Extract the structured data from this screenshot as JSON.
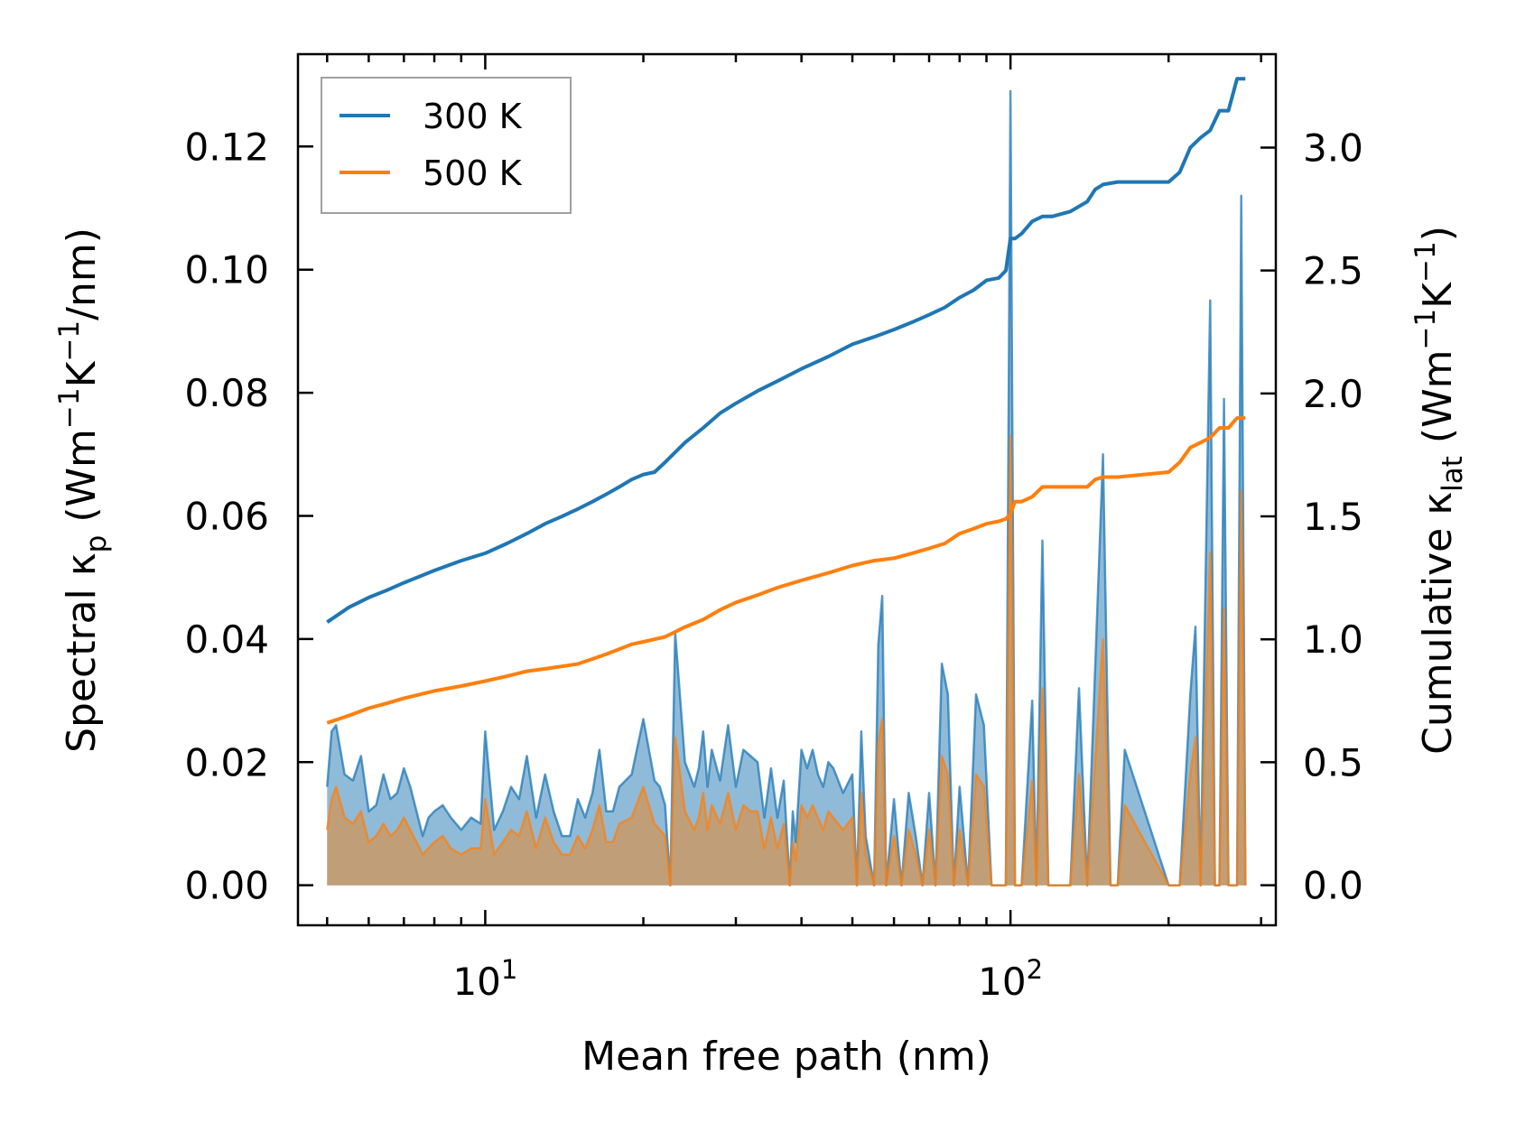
{
  "chart_data": {
    "type": "line",
    "xscale": "log",
    "xlabel": "Mean free path (nm)",
    "ylabel_left": {
      "main": "Spectral κ",
      "sub": "p",
      "unit_open": " (Wm",
      "sup1": "−1",
      "mid": "K",
      "sup2": "−1",
      "unit_close": "/nm)"
    },
    "ylabel_right": {
      "main": "Cumulative κ",
      "sub": "lat",
      "unit_open": " (Wm",
      "sup1": "−1",
      "mid": "K",
      "sup2": "−1",
      "unit_close": ")"
    },
    "xlim": [
      4.4,
      320
    ],
    "ylim_left": [
      -0.0065,
      0.135
    ],
    "ylim_right": [
      -0.163,
      3.38
    ],
    "x_major_ticks": [
      10,
      100
    ],
    "x_tick_labels": [
      {
        "base": "10",
        "exp": "1"
      },
      {
        "base": "10",
        "exp": "2"
      }
    ],
    "y_left_ticks": [
      0.0,
      0.02,
      0.04,
      0.06,
      0.08,
      0.1,
      0.12
    ],
    "y_left_tick_labels": [
      "0.00",
      "0.02",
      "0.04",
      "0.06",
      "0.08",
      "0.10",
      "0.12"
    ],
    "y_right_ticks": [
      0.0,
      0.5,
      1.0,
      1.5,
      2.0,
      2.5,
      3.0
    ],
    "y_right_tick_labels": [
      "0.0",
      "0.5",
      "1.0",
      "1.5",
      "2.0",
      "2.5",
      "3.0"
    ],
    "legend": {
      "location": "upper-left",
      "entries": [
        "300 K",
        "500 K"
      ]
    },
    "colors": {
      "s300": "#1f77b4",
      "s500": "#ff7f0e",
      "fill300": "#1f77b4",
      "fill500": "#d4934f"
    },
    "cumulative": [
      {
        "name": "300 K",
        "x": [
          5.0,
          5.5,
          6.0,
          6.5,
          7.0,
          8.0,
          9.0,
          10.0,
          11.0,
          12.0,
          13.0,
          14.0,
          15.0,
          16.0,
          17.0,
          18.0,
          19.0,
          20.0,
          21.0,
          22.0,
          24.0,
          26.0,
          28.0,
          30.0,
          33.0,
          36.0,
          40.0,
          45.0,
          50.0,
          55.0,
          60.0,
          65.0,
          70.0,
          75.0,
          80.0,
          85.0,
          90.0,
          95.0,
          98.0,
          100.0,
          102.0,
          105.0,
          110.0,
          115.0,
          120.0,
          130.0,
          140.0,
          145.0,
          150.0,
          160.0,
          200.0,
          210.0,
          220.0,
          230.0,
          240.0,
          250.0,
          260.0,
          270.0,
          280.0
        ],
        "y": [
          1.07,
          1.13,
          1.17,
          1.2,
          1.23,
          1.28,
          1.32,
          1.35,
          1.39,
          1.43,
          1.47,
          1.5,
          1.53,
          1.56,
          1.59,
          1.62,
          1.65,
          1.67,
          1.68,
          1.72,
          1.8,
          1.86,
          1.92,
          1.96,
          2.01,
          2.05,
          2.1,
          2.15,
          2.2,
          2.23,
          2.26,
          2.29,
          2.32,
          2.35,
          2.39,
          2.42,
          2.46,
          2.47,
          2.5,
          2.63,
          2.63,
          2.65,
          2.7,
          2.72,
          2.72,
          2.74,
          2.78,
          2.83,
          2.85,
          2.86,
          2.86,
          2.9,
          3.0,
          3.04,
          3.07,
          3.15,
          3.15,
          3.28,
          3.28
        ]
      },
      {
        "name": "500 K",
        "x": [
          5.0,
          5.5,
          6.0,
          6.5,
          7.0,
          8.0,
          9.0,
          10.0,
          11.0,
          12.0,
          13.0,
          14.0,
          15.0,
          16.0,
          17.0,
          18.0,
          19.0,
          20.0,
          21.0,
          22.0,
          24.0,
          26.0,
          28.0,
          30.0,
          33.0,
          36.0,
          40.0,
          45.0,
          50.0,
          55.0,
          60.0,
          65.0,
          70.0,
          75.0,
          80.0,
          85.0,
          90.0,
          95.0,
          98.0,
          100.0,
          102.0,
          105.0,
          110.0,
          115.0,
          120.0,
          130.0,
          140.0,
          145.0,
          150.0,
          160.0,
          200.0,
          210.0,
          220.0,
          230.0,
          240.0,
          250.0,
          260.0,
          270.0,
          280.0
        ],
        "y": [
          0.66,
          0.69,
          0.72,
          0.74,
          0.76,
          0.79,
          0.81,
          0.83,
          0.85,
          0.87,
          0.88,
          0.89,
          0.9,
          0.92,
          0.94,
          0.96,
          0.98,
          0.99,
          1.0,
          1.01,
          1.05,
          1.08,
          1.12,
          1.15,
          1.18,
          1.21,
          1.24,
          1.27,
          1.3,
          1.32,
          1.33,
          1.35,
          1.37,
          1.39,
          1.43,
          1.45,
          1.47,
          1.48,
          1.49,
          1.51,
          1.56,
          1.56,
          1.58,
          1.62,
          1.62,
          1.62,
          1.62,
          1.65,
          1.66,
          1.66,
          1.68,
          1.72,
          1.78,
          1.8,
          1.82,
          1.86,
          1.86,
          1.9,
          1.9
        ]
      }
    ],
    "spectral": [
      {
        "name": "300 K",
        "x": [
          5.0,
          5.1,
          5.2,
          5.4,
          5.6,
          5.8,
          6.0,
          6.2,
          6.4,
          6.6,
          6.8,
          7.0,
          7.2,
          7.4,
          7.6,
          7.8,
          8.0,
          8.3,
          8.6,
          9.0,
          9.4,
          9.8,
          10.0,
          10.4,
          10.8,
          11.2,
          11.6,
          12.0,
          12.5,
          13.0,
          13.5,
          14.0,
          14.5,
          15.0,
          15.5,
          16.0,
          16.5,
          17.0,
          17.5,
          18.0,
          19.0,
          20.0,
          21.0,
          21.5,
          22.0,
          22.5,
          23.0,
          24.0,
          25.0,
          25.5,
          26.0,
          26.5,
          27.0,
          28.0,
          29.0,
          30.0,
          31.0,
          32.0,
          33.0,
          34.0,
          35.0,
          36.0,
          37.0,
          38.0,
          38.5,
          39.0,
          40.0,
          41.0,
          42.0,
          43.0,
          44.0,
          45.0,
          46.0,
          48.0,
          50.0,
          51.0,
          52.0,
          53.0,
          55.0,
          56.0,
          57.0,
          58.0,
          60.0,
          62.0,
          64.0,
          66.0,
          68.0,
          70.0,
          72.0,
          74.0,
          76.0,
          78.0,
          80.0,
          83.0,
          86.0,
          89.0,
          92.0,
          95.0,
          98.0,
          100.0,
          102.0,
          105.0,
          110.0,
          112.0,
          115.0,
          118.0,
          120.0,
          130.0,
          135.0,
          140.0,
          150.0,
          155.0,
          160.0,
          165.0,
          200.0,
          210.0,
          220.0,
          225.0,
          230.0,
          240.0,
          245.0,
          250.0,
          255.0,
          260.0,
          270.0,
          275.0,
          280.0
        ],
        "y": [
          0.016,
          0.025,
          0.026,
          0.018,
          0.017,
          0.021,
          0.012,
          0.013,
          0.018,
          0.014,
          0.015,
          0.019,
          0.016,
          0.012,
          0.008,
          0.011,
          0.012,
          0.013,
          0.011,
          0.009,
          0.011,
          0.01,
          0.025,
          0.009,
          0.012,
          0.016,
          0.014,
          0.021,
          0.011,
          0.018,
          0.012,
          0.008,
          0.008,
          0.014,
          0.011,
          0.015,
          0.022,
          0.012,
          0.012,
          0.016,
          0.018,
          0.027,
          0.017,
          0.016,
          0.013,
          0.0,
          0.041,
          0.02,
          0.016,
          0.019,
          0.025,
          0.016,
          0.022,
          0.017,
          0.026,
          0.016,
          0.022,
          0.021,
          0.02,
          0.011,
          0.019,
          0.011,
          0.017,
          0.0,
          0.012,
          0.007,
          0.022,
          0.019,
          0.022,
          0.018,
          0.016,
          0.02,
          0.019,
          0.015,
          0.018,
          0.0,
          0.025,
          0.008,
          0.0,
          0.039,
          0.047,
          0.0,
          0.014,
          0.0,
          0.015,
          0.008,
          0.0,
          0.015,
          0.0,
          0.036,
          0.031,
          0.0,
          0.016,
          0.0,
          0.031,
          0.026,
          0.0,
          0.0,
          0.0,
          0.129,
          0.0,
          0.0,
          0.03,
          0.0,
          0.056,
          0.0,
          0.0,
          0.0,
          0.032,
          0.0,
          0.07,
          0.0,
          0.0,
          0.022,
          0.0,
          0.0,
          0.031,
          0.042,
          0.0,
          0.095,
          0.0,
          0.0,
          0.079,
          0.0,
          0.0,
          0.112,
          0.0
        ]
      },
      {
        "name": "500 K",
        "x": [
          5.0,
          5.1,
          5.2,
          5.4,
          5.6,
          5.8,
          6.0,
          6.2,
          6.4,
          6.6,
          6.8,
          7.0,
          7.2,
          7.4,
          7.6,
          7.8,
          8.0,
          8.3,
          8.6,
          9.0,
          9.4,
          9.8,
          10.0,
          10.4,
          10.8,
          11.2,
          11.6,
          12.0,
          12.5,
          13.0,
          13.5,
          14.0,
          14.5,
          15.0,
          15.5,
          16.0,
          16.5,
          17.0,
          17.5,
          18.0,
          19.0,
          20.0,
          21.0,
          21.5,
          22.0,
          22.5,
          23.0,
          24.0,
          25.0,
          25.5,
          26.0,
          26.5,
          27.0,
          28.0,
          29.0,
          30.0,
          31.0,
          32.0,
          33.0,
          34.0,
          35.0,
          36.0,
          37.0,
          38.0,
          38.5,
          39.0,
          40.0,
          41.0,
          42.0,
          43.0,
          44.0,
          45.0,
          46.0,
          48.0,
          50.0,
          51.0,
          52.0,
          53.0,
          55.0,
          56.0,
          57.0,
          58.0,
          60.0,
          62.0,
          64.0,
          66.0,
          68.0,
          70.0,
          72.0,
          74.0,
          76.0,
          78.0,
          80.0,
          83.0,
          86.0,
          89.0,
          92.0,
          95.0,
          98.0,
          100.0,
          102.0,
          105.0,
          110.0,
          112.0,
          115.0,
          118.0,
          120.0,
          130.0,
          135.0,
          140.0,
          150.0,
          155.0,
          160.0,
          165.0,
          200.0,
          210.0,
          220.0,
          225.0,
          230.0,
          240.0,
          245.0,
          250.0,
          255.0,
          260.0,
          270.0,
          275.0,
          280.0
        ],
        "y": [
          0.009,
          0.014,
          0.016,
          0.011,
          0.01,
          0.012,
          0.007,
          0.008,
          0.01,
          0.008,
          0.009,
          0.011,
          0.009,
          0.007,
          0.005,
          0.006,
          0.007,
          0.008,
          0.006,
          0.005,
          0.006,
          0.006,
          0.014,
          0.005,
          0.007,
          0.009,
          0.008,
          0.012,
          0.006,
          0.011,
          0.007,
          0.005,
          0.005,
          0.008,
          0.006,
          0.009,
          0.013,
          0.007,
          0.007,
          0.01,
          0.011,
          0.016,
          0.01,
          0.009,
          0.008,
          0.0,
          0.024,
          0.012,
          0.009,
          0.011,
          0.015,
          0.009,
          0.013,
          0.01,
          0.015,
          0.009,
          0.013,
          0.012,
          0.012,
          0.006,
          0.011,
          0.006,
          0.01,
          0.0,
          0.007,
          0.004,
          0.013,
          0.011,
          0.013,
          0.011,
          0.009,
          0.012,
          0.011,
          0.009,
          0.011,
          0.0,
          0.015,
          0.005,
          0.0,
          0.023,
          0.027,
          0.0,
          0.008,
          0.0,
          0.009,
          0.005,
          0.0,
          0.009,
          0.0,
          0.021,
          0.018,
          0.0,
          0.009,
          0.0,
          0.018,
          0.016,
          0.0,
          0.0,
          0.0,
          0.073,
          0.0,
          0.0,
          0.017,
          0.0,
          0.032,
          0.0,
          0.0,
          0.0,
          0.018,
          0.0,
          0.04,
          0.0,
          0.0,
          0.013,
          0.0,
          0.0,
          0.018,
          0.024,
          0.0,
          0.054,
          0.0,
          0.0,
          0.045,
          0.0,
          0.0,
          0.064,
          0.0
        ]
      }
    ]
  }
}
